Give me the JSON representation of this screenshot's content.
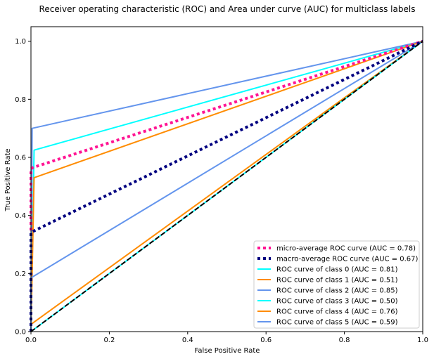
{
  "chart_data": {
    "type": "line",
    "title": "Receiver operating characteristic (ROC) and Area under curve (AUC) for multiclass labels",
    "xlabel": "False Positive Rate",
    "ylabel": "True Positive Rate",
    "xlim": [
      0.0,
      1.0
    ],
    "ylim": [
      0.0,
      1.05
    ],
    "xticks": [
      "0.0",
      "0.2",
      "0.4",
      "0.6",
      "0.8",
      "1.0"
    ],
    "yticks": [
      "0.0",
      "0.2",
      "0.4",
      "0.6",
      "0.8",
      "1.0"
    ],
    "grid": false,
    "legend_position": "lower right",
    "series": [
      {
        "name": "micro-average ROC curve (AUC = 0.78)",
        "color": "#ff1493",
        "style": "dotted",
        "x": [
          0.0,
          0.0,
          0.005,
          1.0
        ],
        "y": [
          0.0,
          0.56,
          0.565,
          1.0
        ]
      },
      {
        "name": "macro-average ROC curve (AUC = 0.67)",
        "color": "#000080",
        "style": "dotted",
        "x": [
          0.0,
          0.0,
          0.005,
          1.0
        ],
        "y": [
          0.0,
          0.34,
          0.345,
          1.0
        ]
      },
      {
        "name": "ROC curve of class 0 (AUC = 0.81)",
        "color": "#00ffff",
        "style": "solid",
        "x": [
          0.0,
          0.008,
          1.0
        ],
        "y": [
          0.0,
          0.625,
          1.0
        ]
      },
      {
        "name": "ROC curve of class 1 (AUC = 0.51)",
        "color": "#ff8c00",
        "style": "solid",
        "x": [
          0.0,
          0.0,
          1.0
        ],
        "y": [
          0.0,
          0.025,
          1.0
        ]
      },
      {
        "name": "ROC curve of class 2 (AUC = 0.85)",
        "color": "#6495ed",
        "style": "solid",
        "x": [
          0.0,
          0.003,
          1.0
        ],
        "y": [
          0.0,
          0.7,
          1.0
        ]
      },
      {
        "name": "ROC curve of class 3 (AUC = 0.50)",
        "color": "#00ffff",
        "style": "solid",
        "x": [
          0.0,
          1.0
        ],
        "y": [
          0.0,
          1.0
        ]
      },
      {
        "name": "ROC curve of class 4 (AUC = 0.76)",
        "color": "#ff8c00",
        "style": "solid",
        "x": [
          0.0,
          0.008,
          1.0
        ],
        "y": [
          0.0,
          0.53,
          1.0
        ]
      },
      {
        "name": "ROC curve of class 5 (AUC = 0.59)",
        "color": "#6495ed",
        "style": "solid",
        "x": [
          0.0,
          0.0,
          1.0
        ],
        "y": [
          0.0,
          0.185,
          1.0
        ]
      }
    ],
    "reference_line": {
      "color": "#000000",
      "style": "dashed",
      "x": [
        0.0,
        1.0
      ],
      "y": [
        0.0,
        1.0
      ]
    }
  }
}
